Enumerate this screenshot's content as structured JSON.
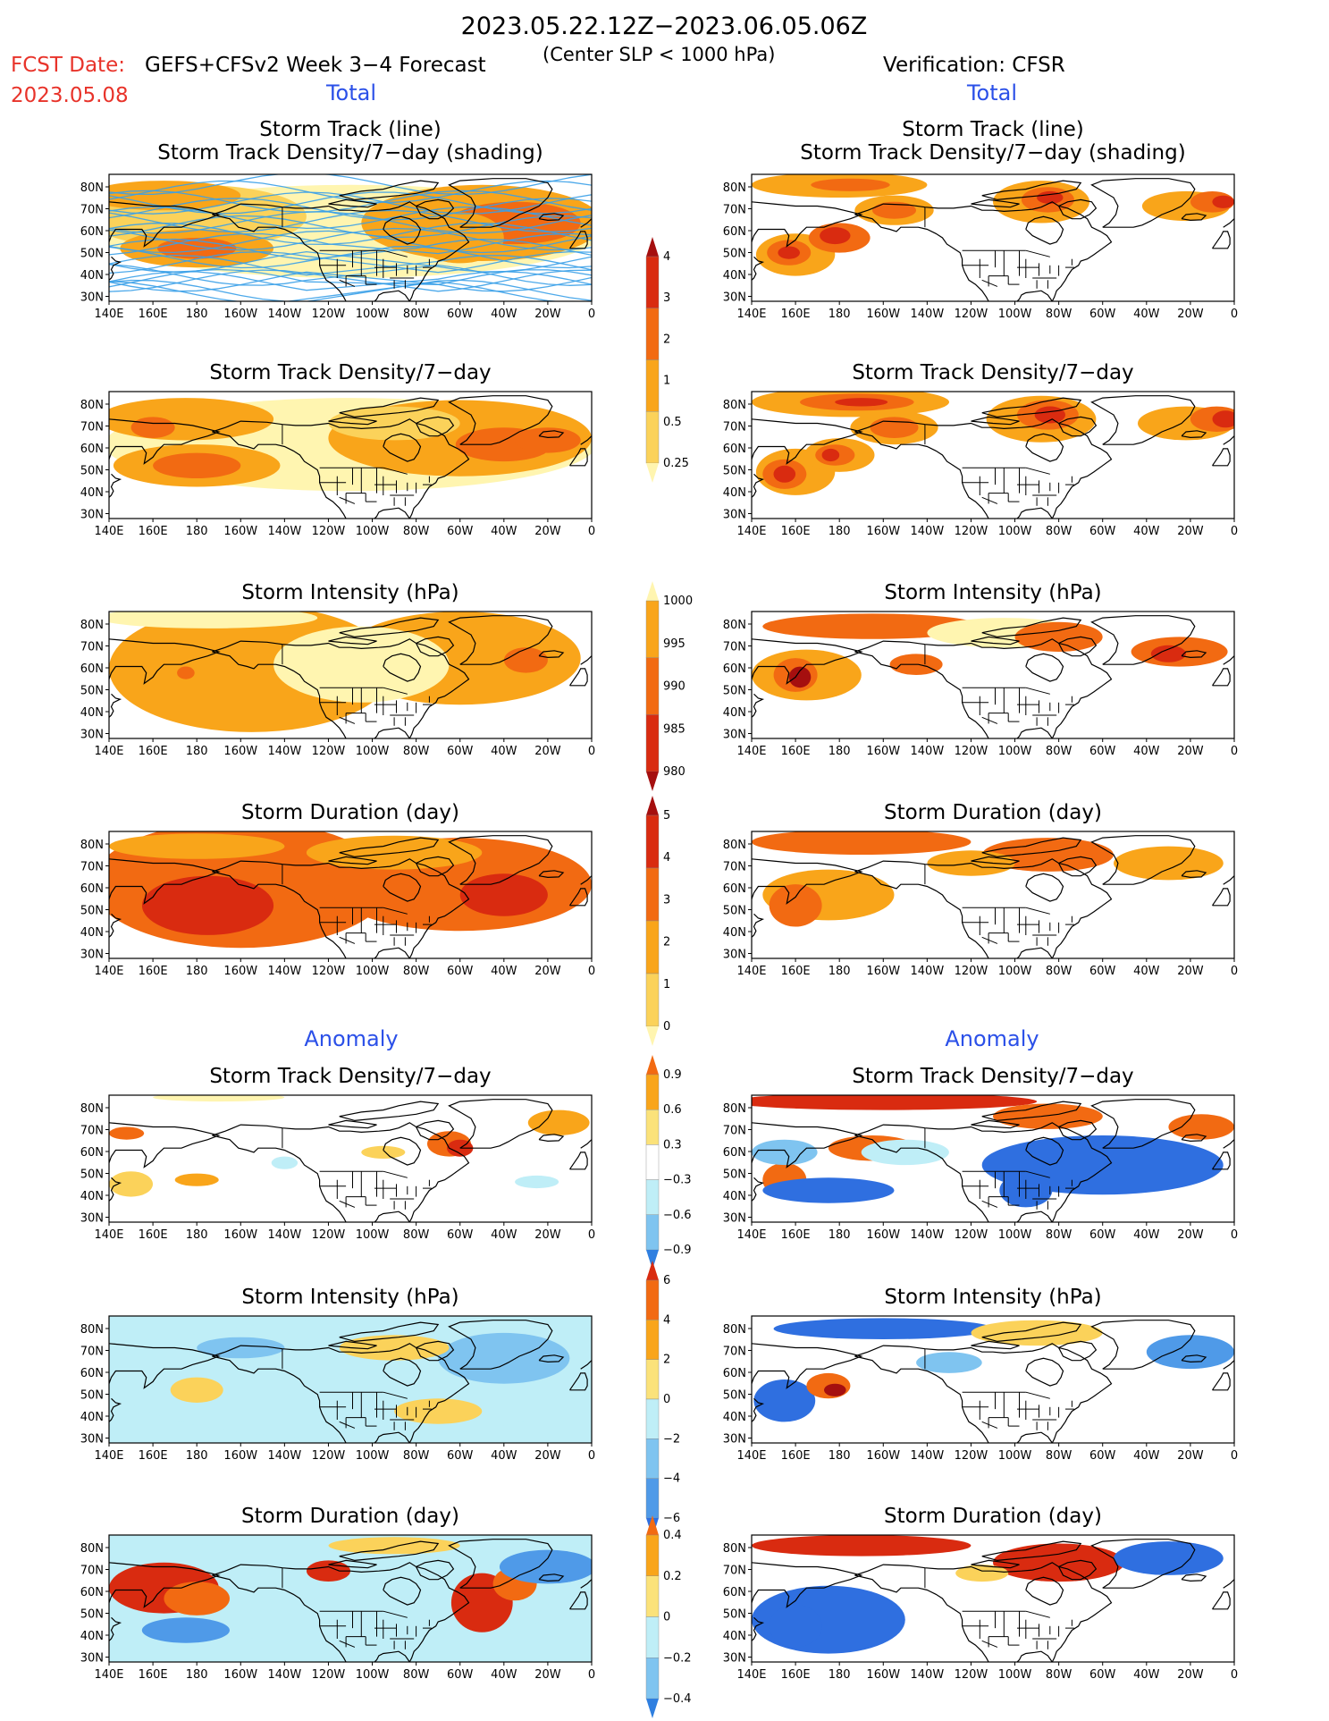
{
  "header": {
    "title": "2023.05.22.12Z−2023.06.05.06Z",
    "fcst_label": "FCST Date:",
    "fcst_date": "2023.05.08",
    "forecast_model": "GEFS+CFSv2 Week 3−4 Forecast",
    "center_note": "(Center SLP < 1000 hPa)",
    "verification": "Verification: CFSR"
  },
  "sections": {
    "total_left": "Total",
    "total_right": "Total",
    "anomaly_left": "Anomaly",
    "anomaly_right": "Anomaly"
  },
  "panel_titles": {
    "track_line": "Storm Track (line)",
    "track_shading": "Storm Track Density/7−day (shading)",
    "density": "Storm Track Density/7−day",
    "intensity": "Storm Intensity (hPa)",
    "duration": "Storm Duration (day)"
  },
  "axes": {
    "lon_ticks": [
      "140E",
      "160E",
      "180",
      "160W",
      "140W",
      "120W",
      "100W",
      "80W",
      "60W",
      "40W",
      "20W",
      "0"
    ],
    "lat_ticks": [
      "80N",
      "70N",
      "60N",
      "50N",
      "40N",
      "30N"
    ]
  },
  "colorbars": {
    "density_total": {
      "labels": [
        "4",
        "3",
        "2",
        "1",
        "0.5",
        "0.25"
      ],
      "colors": [
        "#a50f0f",
        "#d92b10",
        "#f26a12",
        "#f9a51a",
        "#fbd25a",
        "#fff5b0"
      ]
    },
    "intensity_total": {
      "labels": [
        "1000",
        "995",
        "990",
        "985",
        "980"
      ],
      "colors": [
        "#fff5b0",
        "#f9a51a",
        "#f26a12",
        "#d92b10",
        "#a50f0f"
      ]
    },
    "duration_total": {
      "labels": [
        "5",
        "4",
        "3",
        "2",
        "1",
        "0"
      ],
      "colors": [
        "#a50f0f",
        "#d92b10",
        "#f26a12",
        "#f9a51a",
        "#fbd25a",
        "#fff5b0"
      ]
    },
    "density_anom": {
      "labels": [
        "0.9",
        "0.6",
        "0.3",
        "−0.3",
        "−0.6",
        "−0.9"
      ],
      "colors": [
        "#f26a12",
        "#f9a51a",
        "#fbe27a",
        "#ffffff",
        "#bfeef7",
        "#7fc4f0",
        "#2f7fe0"
      ]
    },
    "intensity_anom": {
      "labels": [
        "6",
        "4",
        "2",
        "0",
        "−2",
        "−4",
        "−6"
      ],
      "colors": [
        "#d92b10",
        "#f26a12",
        "#f9a51a",
        "#fbe27a",
        "#bfeef7",
        "#7fc4f0",
        "#4f9ae8",
        "#2f6fe0"
      ]
    },
    "duration_anom": {
      "labels": [
        "0.4",
        "0.2",
        "0",
        "−0.2",
        "−0.4"
      ],
      "colors": [
        "#f26a12",
        "#f9a51a",
        "#fbe27a",
        "#bfeef7",
        "#7fc4f0",
        "#2f7fe0"
      ]
    }
  },
  "colors": {
    "title_red": "#e8332a",
    "section_blue": "#2b50e8",
    "coast": "#000000",
    "track_line": "#3aa0e8"
  }
}
